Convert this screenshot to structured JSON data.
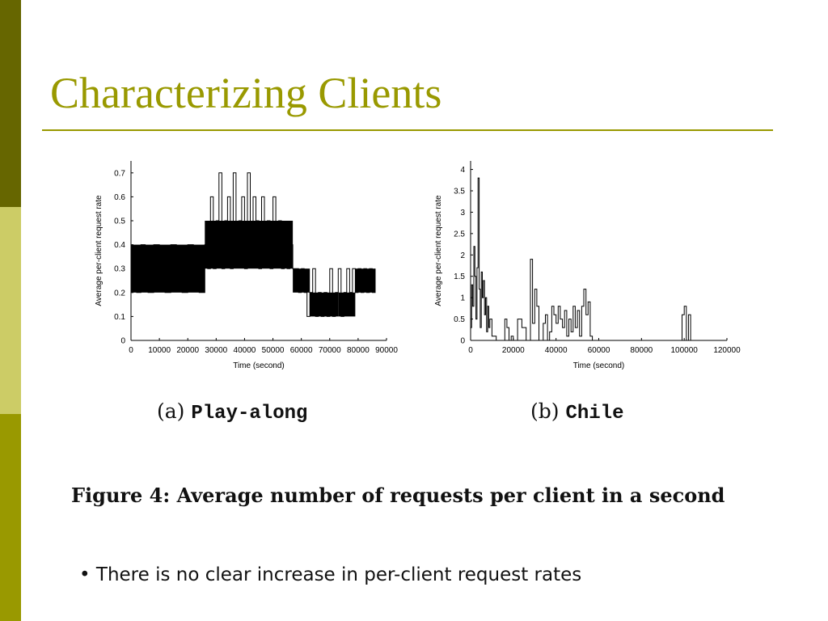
{
  "slide": {
    "title": "Characterizing Clients",
    "subcaption_a_prefix": "(a)",
    "subcaption_a_name": "Play-along",
    "subcaption_b_prefix": "(b)",
    "subcaption_b_name": "Chile",
    "figure_caption": "Figure 4: Average number of requests per client in a second",
    "bullet": "There is no clear increase in per-client request rates",
    "colors": {
      "accent": "#999900",
      "bar_dark": "#666600",
      "bar_light": "#cccc66"
    }
  },
  "chart_data": [
    {
      "type": "line",
      "xlabel": "Time (second)",
      "ylabel": "Average per-client request rate",
      "xlim": [
        0,
        90000
      ],
      "ylim": [
        0,
        0.75
      ],
      "xticks": [
        0,
        10000,
        20000,
        30000,
        40000,
        50000,
        60000,
        70000,
        80000,
        90000
      ],
      "yticks": [
        0,
        0.1,
        0.2,
        0.3,
        0.4,
        0.5,
        0.6,
        0.7
      ],
      "ytick_labels": [
        "0",
        "0.1",
        "0.2",
        "0.3",
        "0.4",
        "0.5",
        "0.6",
        "0.7"
      ],
      "grid": false,
      "series": [
        {
          "x": [
            0,
            2000,
            3500,
            5000,
            6000,
            8000,
            10000,
            12000,
            14000,
            16000,
            18000,
            20000,
            22000,
            24000,
            26000,
            27000,
            28000,
            29000,
            30000,
            31000,
            32000,
            33000,
            34000,
            35000,
            36000,
            37000,
            38000,
            39000,
            40000,
            41000,
            42000,
            43000,
            44000,
            45000,
            46000,
            47000,
            48000,
            49000,
            50000,
            51000,
            52000,
            53000,
            54000,
            55000,
            56000,
            57000,
            58000,
            59000,
            60000,
            61000,
            62000,
            63000,
            64000,
            65000,
            66000,
            67000,
            68000,
            69000,
            70000,
            71000,
            72000,
            73000,
            74000,
            75000,
            76000,
            77000,
            78000,
            79000,
            80000,
            81000,
            82000,
            83000,
            84000,
            85000,
            86000
          ],
          "y": [
            0.3,
            0.2,
            0.4,
            0.3,
            0.2,
            0.4,
            0.3,
            0.2,
            0.4,
            0.3,
            0.2,
            0.4,
            0.3,
            0.2,
            0.4,
            0.3,
            0.6,
            0.3,
            0.5,
            0.7,
            0.3,
            0.5,
            0.6,
            0.3,
            0.7,
            0.4,
            0.5,
            0.6,
            0.3,
            0.7,
            0.4,
            0.6,
            0.5,
            0.3,
            0.6,
            0.4,
            0.5,
            0.3,
            0.6,
            0.4,
            0.5,
            0.3,
            0.4,
            0.3,
            0.4,
            0.3,
            0.3,
            0.2,
            0.3,
            0.2,
            0.1,
            0.2,
            0.3,
            0.1,
            0.2,
            0.1,
            0.2,
            0.1,
            0.3,
            0.1,
            0.2,
            0.3,
            0.1,
            0.2,
            0.3,
            0.2,
            0.3,
            0.2,
            0.3,
            0.2,
            0.3,
            0.2,
            0.3,
            0.2,
            0.3
          ]
        }
      ],
      "level_bands": [
        {
          "x_from": 0,
          "x_to": 26000,
          "y_low": 0.2,
          "y_high": 0.4
        },
        {
          "x_from": 26000,
          "x_to": 57000,
          "y_low": 0.3,
          "y_high": 0.5
        },
        {
          "x_from": 57000,
          "x_to": 63000,
          "y_low": 0.2,
          "y_high": 0.3
        },
        {
          "x_from": 63000,
          "x_to": 73000,
          "y_low": 0.1,
          "y_high": 0.2
        },
        {
          "x_from": 73000,
          "x_to": 79000,
          "y_low": 0.1,
          "y_high": 0.2
        },
        {
          "x_from": 79000,
          "x_to": 86000,
          "y_low": 0.2,
          "y_high": 0.3
        }
      ]
    },
    {
      "type": "line",
      "xlabel": "Time (second)",
      "ylabel": "Average per-client request rate",
      "xlim": [
        0,
        120000
      ],
      "ylim": [
        0,
        4.2
      ],
      "xticks": [
        0,
        20000,
        40000,
        60000,
        80000,
        100000,
        120000
      ],
      "yticks": [
        0,
        0.5,
        1,
        1.5,
        2,
        2.5,
        3,
        3.5,
        4
      ],
      "ytick_labels": [
        "0",
        "0.5",
        "1",
        "1.5",
        "2",
        "2.5",
        "3",
        "3.5",
        "4"
      ],
      "grid": false,
      "series": [
        {
          "x": [
            0,
            500,
            1000,
            1500,
            2000,
            2500,
            3000,
            3500,
            4000,
            4500,
            5000,
            5500,
            6000,
            6500,
            7000,
            7500,
            8000,
            8500,
            9000,
            10000,
            12000,
            15000,
            16000,
            17000,
            18000,
            19000,
            20000,
            22000,
            24000,
            26000,
            28000,
            29000,
            30000,
            31000,
            32000,
            34000,
            35000,
            36000,
            37000,
            38000,
            39000,
            40000,
            41000,
            42000,
            43000,
            44000,
            45000,
            46000,
            47000,
            48000,
            49000,
            50000,
            51000,
            52000,
            53000,
            54000,
            55000,
            56000,
            57000,
            58000,
            60000,
            70000,
            90000,
            98000,
            99000,
            100000,
            101000,
            102000,
            103000,
            110000,
            120000
          ],
          "y": [
            0.3,
            1.3,
            0.8,
            2.2,
            1.5,
            0.5,
            1.7,
            3.8,
            1.2,
            0.3,
            1.6,
            1.0,
            1.4,
            0.6,
            1.0,
            0.2,
            0.8,
            0.3,
            0.5,
            0.1,
            0,
            0,
            0.5,
            0.3,
            0,
            0.1,
            0,
            0.5,
            0.3,
            0,
            1.9,
            0.4,
            1.2,
            0.8,
            0,
            0.4,
            0.6,
            0,
            0.2,
            0.8,
            0.6,
            0.4,
            0.8,
            0.5,
            0.3,
            0.7,
            0.1,
            0.5,
            0.2,
            0.8,
            0.3,
            0.7,
            0.1,
            0.8,
            1.2,
            0.6,
            0.9,
            0.1,
            0,
            0,
            0,
            0,
            0,
            0,
            0.6,
            0.8,
            0,
            0.6,
            0,
            0,
            0
          ]
        }
      ],
      "level_bands": []
    }
  ]
}
